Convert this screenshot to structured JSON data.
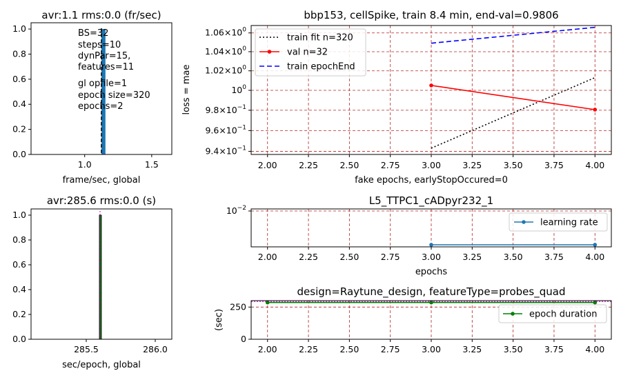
{
  "chart_data": [
    {
      "id": "fps_hist",
      "type": "bar",
      "title": "avr:1.1 rms:0.0 (fr/sec)",
      "xlabel": "frame/sec,  global",
      "ylabel": "",
      "xlim": [
        0.6,
        1.65
      ],
      "ylim": [
        0,
        1.05
      ],
      "xticks": [
        "1.0",
        "1.5"
      ],
      "yticks": [
        "0.0",
        "0.2",
        "0.4",
        "0.6",
        "0.8",
        "1.0"
      ],
      "bars": [
        {
          "x0": 1.125,
          "x1": 1.155,
          "value": 1.0,
          "color": "#1f77b4"
        }
      ],
      "mean_line": 1.125,
      "notes": [
        "BS=32",
        "steps=10",
        "dynPar=15,",
        "features=11",
        "gl opfile=1",
        "epoch size=320",
        "epochs=2"
      ]
    },
    {
      "id": "loss",
      "type": "line",
      "title": "bbp153, cellSpike, train 8.4 min, end-val=0.9806",
      "xlabel": "fake epochs, earlyStopOccured=0",
      "ylabel": "loss = mae",
      "log_y": true,
      "grid": true,
      "xlim": [
        1.9,
        4.1
      ],
      "ylim": [
        0.937,
        1.068
      ],
      "xticks": [
        "2.00",
        "2.25",
        "2.50",
        "2.75",
        "3.00",
        "3.25",
        "3.50",
        "3.75",
        "4.00"
      ],
      "ytick_labels": [
        {
          "value": 1.06,
          "mant": "1.06",
          "exp": "0"
        },
        {
          "value": 1.04,
          "mant": "1.04",
          "exp": "0"
        },
        {
          "value": 1.02,
          "mant": "1.02",
          "exp": "0"
        },
        {
          "value": 1.0,
          "mant": "1",
          "exp": "0"
        },
        {
          "value": 0.98,
          "mant": "9.8",
          "exp": "−1"
        },
        {
          "value": 0.96,
          "mant": "9.6",
          "exp": "−1"
        },
        {
          "value": 0.94,
          "mant": "9.4",
          "exp": "−1"
        }
      ],
      "legend_position": "top-left",
      "series": [
        {
          "name": "train fit n=320",
          "color": "#000000",
          "style": "dotted",
          "marker": false,
          "x": [
            3,
            4
          ],
          "y": [
            0.943,
            1.013
          ]
        },
        {
          "name": "val n=32",
          "color": "#ff0000",
          "style": "solid",
          "marker": true,
          "x": [
            3,
            4
          ],
          "y": [
            1.005,
            0.9806
          ]
        },
        {
          "name": "train epochEnd",
          "color": "#0000ff",
          "style": "dashed",
          "marker": false,
          "x": [
            3,
            4
          ],
          "y": [
            1.049,
            1.066
          ]
        }
      ]
    },
    {
      "id": "time_hist",
      "type": "bar",
      "title": "avr:285.6 rms:0.0 (s)",
      "xlabel": "sec/epoch,  global",
      "ylabel": "",
      "xlim": [
        285.1,
        286.12
      ],
      "ylim": [
        0,
        1.05
      ],
      "xticks": [
        "285.5",
        "286.0"
      ],
      "yticks": [
        "0.0",
        "0.2",
        "0.4",
        "0.6",
        "0.8",
        "1.0"
      ],
      "bars": [
        {
          "x0": 285.595,
          "x1": 285.61,
          "value": 1.0,
          "color": "#008000"
        }
      ],
      "mean_line": 285.6
    },
    {
      "id": "lr",
      "type": "line",
      "title": "L5_TTPC1_cADpyr232_1",
      "xlabel": "epochs",
      "ylabel": "",
      "log_y": true,
      "grid": true,
      "xlim": [
        1.9,
        4.1
      ],
      "xticks": [
        "2.00",
        "2.25",
        "2.50",
        "2.75",
        "3.00",
        "3.25",
        "3.50",
        "3.75",
        "4.00"
      ],
      "ytick_labels": [
        {
          "mant": "10",
          "exp": "−2"
        }
      ],
      "legend_position": "upper-right",
      "series": [
        {
          "name": "learning rate",
          "color": "#1f77b4",
          "marker": true,
          "x": [
            3,
            4
          ],
          "y": [
            0.001,
            0.001
          ]
        }
      ]
    },
    {
      "id": "duration",
      "type": "line",
      "title": "design=Raytune_design, featureType=probes_quad",
      "xlabel": "",
      "ylabel": "(sec)",
      "grid": true,
      "xlim": [
        1.9,
        4.1
      ],
      "ylim": [
        0,
        300
      ],
      "xticks": [
        "2.00",
        "2.25",
        "2.50",
        "2.75",
        "3.00",
        "3.25",
        "3.50",
        "3.75",
        "4.00"
      ],
      "yticks": [
        {
          "value": 0,
          "label": "0"
        },
        {
          "value": 250,
          "label": "250"
        }
      ],
      "legend_position": "upper-right",
      "series": [
        {
          "name": "epoch duration",
          "color": "#008000",
          "marker": true,
          "x": [
            2,
            3,
            4
          ],
          "y": [
            285.6,
            285.6,
            285.6
          ]
        }
      ]
    }
  ]
}
